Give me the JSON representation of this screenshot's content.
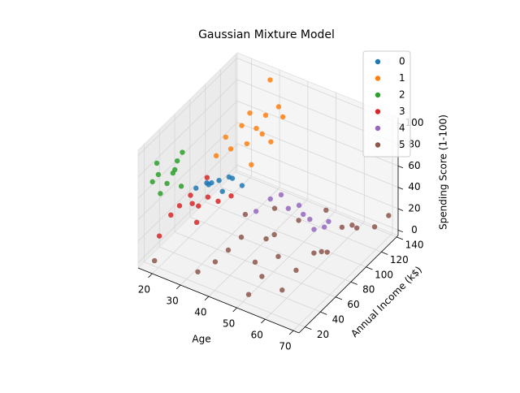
{
  "chart_data": {
    "type": "scatter3d",
    "title": "Gaussian Mixture Model",
    "xlabel": "Age",
    "ylabel": "Annual Income (k$)",
    "zlabel": "Spending Score (1-100)",
    "xlim": [
      15,
      72
    ],
    "ylim": [
      12,
      142
    ],
    "zlim": [
      -5,
      105
    ],
    "xticks": [
      20,
      30,
      40,
      50,
      60,
      70
    ],
    "yticks": [
      20,
      40,
      60,
      80,
      100,
      120,
      140
    ],
    "zticks": [
      0,
      20,
      40,
      60,
      80,
      100
    ],
    "legend": "upper right",
    "series": [
      {
        "name": "0",
        "color": "#1f77b4",
        "x": [
          22,
          25,
          28,
          31,
          34,
          27,
          24,
          33,
          30
        ],
        "y": [
          62,
          65,
          70,
          72,
          78,
          60,
          75,
          69,
          67
        ],
        "z": [
          42,
          48,
          50,
          55,
          46,
          52,
          40,
          58,
          44
        ]
      },
      {
        "name": "1",
        "color": "#ff7f0e",
        "x": [
          27,
          29,
          30,
          32,
          33,
          35,
          36,
          38,
          39,
          31,
          34,
          28,
          30,
          37
        ],
        "y": [
          70,
          75,
          78,
          85,
          88,
          93,
          97,
          101,
          113,
          120,
          126,
          137,
          103,
          79
        ],
        "z": [
          72,
          88,
          76,
          95,
          77,
          90,
          83,
          75,
          91,
          79,
          86,
          97,
          92,
          68
        ]
      },
      {
        "name": "2",
        "color": "#2ca02c",
        "x": [
          19,
          20,
          21,
          22,
          23,
          24,
          25,
          21,
          23,
          20
        ],
        "y": [
          16,
          18,
          19,
          24,
          28,
          30,
          33,
          38,
          39,
          20
        ],
        "z": [
          77,
          94,
          66,
          73,
          81,
          92,
          99,
          75,
          61,
          82
        ]
      },
      {
        "name": "3",
        "color": "#d62728",
        "x": [
          19,
          22,
          24,
          26,
          28,
          30,
          32,
          27,
          25,
          29,
          35
        ],
        "y": [
          25,
          29,
          33,
          40,
          43,
          48,
          54,
          58,
          46,
          37,
          60
        ],
        "z": [
          20,
          40,
          48,
          55,
          45,
          52,
          46,
          60,
          42,
          35,
          50
        ]
      },
      {
        "name": "4",
        "color": "#9467bd",
        "x": [
          43,
          47,
          50,
          52,
          55,
          58,
          60,
          63,
          66,
          68
        ],
        "y": [
          63,
          67,
          70,
          72,
          75,
          78,
          62,
          65,
          73,
          60
        ],
        "z": [
          42,
          55,
          60,
          48,
          52,
          40,
          58,
          45,
          50,
          56
        ]
      },
      {
        "name": "5",
        "color": "#8c564b",
        "x": [
          20,
          34,
          38,
          41,
          44,
          47,
          49,
          52,
          54,
          56,
          58,
          60,
          62,
          64,
          66,
          68,
          70,
          45,
          50,
          57,
          63,
          67,
          53,
          59,
          40
        ],
        "y": [
          15,
          20,
          28,
          34,
          40,
          47,
          54,
          20,
          30,
          44,
          60,
          76,
          86,
          98,
          110,
          126,
          137,
          80,
          93,
          103,
          115,
          60,
          50,
          38,
          60
        ],
        "z": [
          5,
          6,
          14,
          24,
          35,
          10,
          29,
          4,
          16,
          27,
          5,
          12,
          8,
          25,
          18,
          10,
          15,
          35,
          20,
          30,
          14,
          32,
          40,
          3,
          38
        ]
      }
    ]
  }
}
